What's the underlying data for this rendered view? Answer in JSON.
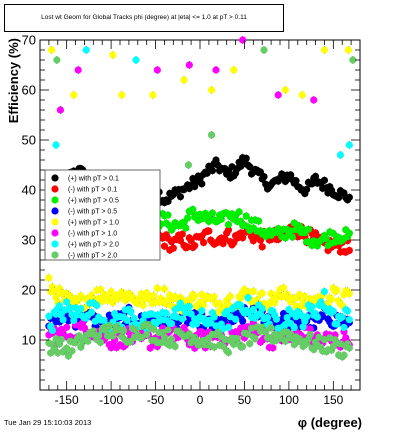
{
  "title": "Lost wt Geom for Global Tracks phi (degree) at |eta| <= 1.0 at pT > 0.11",
  "footer": "Tue Jan 29 15:10:03 2013",
  "chart_data": {
    "type": "scatter",
    "title": "Lost wt Geom for Global Tracks phi (degree) at |eta| <= 1.0 at pT > 0.11",
    "xlabel": "φ (degree)",
    "ylabel": "Efficiency (%)",
    "xlim": [
      -180,
      180
    ],
    "ylim": [
      0,
      70
    ],
    "x_ticks": [
      -150,
      -100,
      -50,
      0,
      50,
      100,
      150
    ],
    "y_ticks": [
      10,
      20,
      30,
      40,
      50,
      60,
      70
    ],
    "grid": false,
    "legend_position": "left-middle",
    "series": [
      {
        "name": "(+) with pT > 0.1",
        "color": "#000000",
        "noise": 1.2,
        "x": [
          -170,
          -160,
          -150,
          -140,
          -130,
          -120,
          -110,
          -100,
          -90,
          -80,
          -70,
          -60,
          -50,
          -40,
          -30,
          -20,
          -10,
          0,
          10,
          20,
          30,
          40,
          50,
          60,
          70,
          80,
          90,
          100,
          110,
          120,
          130,
          140,
          150,
          160,
          170
        ],
        "y": [
          39,
          40,
          42,
          44,
          43,
          41,
          39,
          38,
          40,
          41,
          38,
          39,
          40,
          38,
          39,
          40,
          41,
          42,
          44,
          45,
          43,
          44,
          46,
          44,
          42,
          41,
          42,
          43,
          41,
          40,
          42,
          41,
          40,
          39,
          38.5
        ]
      },
      {
        "name": "(-) with pT > 0.1",
        "color": "#ff0000",
        "noise": 1.5,
        "x": [
          -170,
          -160,
          -150,
          -140,
          -130,
          -120,
          -110,
          -100,
          -90,
          -80,
          -70,
          -60,
          -50,
          -40,
          -30,
          -20,
          -10,
          0,
          10,
          20,
          30,
          40,
          50,
          60,
          70,
          80,
          90,
          100,
          110,
          120,
          130,
          140,
          150,
          160,
          170
        ],
        "y": [
          28,
          29,
          30,
          31,
          30,
          29,
          30,
          31,
          31,
          30,
          30,
          30,
          31,
          30,
          29,
          30,
          29,
          30,
          31,
          30,
          31,
          30,
          32,
          31,
          30,
          31,
          30,
          32,
          32,
          31,
          30,
          29,
          29,
          29,
          28
        ]
      },
      {
        "name": "(+) with pT > 0.5",
        "color": "#00ee00",
        "noise": 1.5,
        "x": [
          -170,
          -160,
          -150,
          -140,
          -130,
          -120,
          -110,
          -100,
          -90,
          -80,
          -70,
          -60,
          -50,
          -40,
          -30,
          -20,
          -10,
          0,
          10,
          20,
          30,
          40,
          50,
          60,
          70,
          80,
          90,
          100,
          110,
          120,
          130,
          140,
          150,
          160,
          170
        ],
        "y": [
          35,
          34,
          34,
          35,
          35,
          35,
          35,
          34,
          33,
          32,
          33,
          34,
          34,
          34,
          33,
          33,
          35,
          35,
          34,
          34,
          34,
          35,
          34,
          33,
          32,
          31,
          31,
          32,
          32,
          31,
          30,
          30,
          31,
          31,
          30
        ]
      },
      {
        "name": "(-) with pT > 0.5",
        "color": "#0000ff",
        "noise": 1.5,
        "x": [
          -170,
          -160,
          -150,
          -140,
          -130,
          -120,
          -110,
          -100,
          -90,
          -80,
          -70,
          -60,
          -50,
          -40,
          -30,
          -20,
          -10,
          0,
          10,
          20,
          30,
          40,
          50,
          60,
          70,
          80,
          90,
          100,
          110,
          120,
          130,
          140,
          150,
          160,
          170
        ],
        "y": [
          13,
          14,
          15,
          14,
          15,
          14,
          13,
          14,
          14,
          15,
          14,
          13,
          14,
          14,
          13,
          15,
          14,
          14,
          13,
          13,
          14,
          14,
          15,
          16,
          15,
          14,
          14,
          14,
          13,
          14,
          13,
          15,
          14,
          14,
          13
        ]
      },
      {
        "name": "(+) with pT > 1.0",
        "color": "#ffff00",
        "noise": 1.6,
        "x": [
          -170,
          -160,
          -150,
          -140,
          -130,
          -120,
          -110,
          -100,
          -90,
          -80,
          -70,
          -60,
          -50,
          -40,
          -30,
          -20,
          -10,
          0,
          10,
          20,
          30,
          40,
          50,
          60,
          70,
          80,
          90,
          100,
          110,
          120,
          130,
          140,
          150,
          160,
          170
        ],
        "y": [
          21,
          19,
          18,
          17,
          18,
          19,
          19,
          19,
          19,
          19,
          18,
          18,
          19,
          19,
          18,
          17,
          18,
          18,
          18,
          17,
          18,
          18,
          19,
          19,
          18,
          18,
          19,
          19,
          18,
          17,
          18,
          18,
          19,
          18,
          19
        ]
      },
      {
        "name": "(-) with pT > 1.0",
        "color": "#ff00ff",
        "noise": 1.8,
        "x": [
          -170,
          -160,
          -150,
          -140,
          -130,
          -120,
          -110,
          -100,
          -90,
          -80,
          -70,
          -60,
          -50,
          -40,
          -30,
          -20,
          -10,
          0,
          10,
          20,
          30,
          40,
          50,
          60,
          70,
          80,
          90,
          100,
          110,
          120,
          130,
          140,
          150,
          160,
          170
        ],
        "y": [
          12,
          11,
          11,
          12,
          12,
          12,
          11,
          10,
          10,
          11,
          10,
          10,
          10,
          11,
          11,
          11,
          10,
          10,
          10,
          11,
          11,
          11,
          12,
          12,
          11,
          10,
          11,
          10,
          11,
          11,
          10,
          10,
          10,
          10,
          11
        ]
      },
      {
        "name": "(+) with pT > 2.0",
        "color": "#00ffff",
        "noise": 2.0,
        "x": [
          -170,
          -160,
          -150,
          -140,
          -130,
          -120,
          -110,
          -100,
          -90,
          -80,
          -70,
          -60,
          -50,
          -40,
          -30,
          -20,
          -10,
          0,
          10,
          20,
          30,
          40,
          50,
          60,
          70,
          80,
          90,
          100,
          110,
          120,
          130,
          140,
          150,
          160,
          170
        ],
        "y": [
          13,
          15,
          16,
          15,
          16,
          16,
          14,
          13,
          14,
          15,
          14,
          13,
          14,
          14,
          15,
          16,
          15,
          14,
          14,
          13,
          14,
          15,
          17,
          16,
          15,
          14,
          14,
          15,
          14,
          15,
          16,
          18,
          15,
          14,
          15
        ]
      },
      {
        "name": "(-) with pT > 2.0",
        "color": "#66cc66",
        "noise": 1.6,
        "x": [
          -170,
          -160,
          -150,
          -140,
          -130,
          -120,
          -110,
          -100,
          -90,
          -80,
          -70,
          -60,
          -50,
          -40,
          -30,
          -20,
          -10,
          0,
          10,
          20,
          30,
          40,
          50,
          60,
          70,
          80,
          90,
          100,
          110,
          120,
          130,
          140,
          150,
          160,
          170
        ],
        "y": [
          9,
          9,
          8,
          9,
          10,
          11,
          11,
          12,
          11,
          11,
          12,
          12,
          11,
          11,
          10,
          11,
          11,
          10,
          10,
          10,
          9,
          9,
          10,
          11,
          11,
          11,
          11,
          11,
          10,
          10,
          9,
          9,
          9,
          8,
          9
        ]
      }
    ],
    "outliers": [
      {
        "x": -167,
        "y": 68,
        "color": "#ffff00"
      },
      {
        "x": -161,
        "y": 66,
        "color": "#66cc66"
      },
      {
        "x": -157,
        "y": 56,
        "color": "#ff00ff"
      },
      {
        "x": -162,
        "y": 49,
        "color": "#00ffff"
      },
      {
        "x": -137,
        "y": 64,
        "color": "#ff00ff"
      },
      {
        "x": -128,
        "y": 68,
        "color": "#00ffff"
      },
      {
        "x": -98,
        "y": 67,
        "color": "#ffff00"
      },
      {
        "x": -72,
        "y": 66,
        "color": "#00ffff"
      },
      {
        "x": -48,
        "y": 64,
        "color": "#ff00ff"
      },
      {
        "x": -18,
        "y": 62,
        "color": "#ffff00"
      },
      {
        "x": -12,
        "y": 65,
        "color": "#ff00ff"
      },
      {
        "x": 18,
        "y": 64,
        "color": "#ff00ff"
      },
      {
        "x": 38,
        "y": 64,
        "color": "#ffff00"
      },
      {
        "x": 48,
        "y": 70,
        "color": "#ff00ff"
      },
      {
        "x": 72,
        "y": 68,
        "color": "#66cc66"
      },
      {
        "x": 96,
        "y": 60,
        "color": "#ffff00"
      },
      {
        "x": 128,
        "y": 58,
        "color": "#ff00ff"
      },
      {
        "x": 140,
        "y": 68,
        "color": "#ffff00"
      },
      {
        "x": 167,
        "y": 68,
        "color": "#ffff00"
      },
      {
        "x": 172,
        "y": 66,
        "color": "#66cc66"
      },
      {
        "x": 168,
        "y": 49,
        "color": "#00ffff"
      },
      {
        "x": -142,
        "y": 59,
        "color": "#ffff00"
      },
      {
        "x": -88,
        "y": 59,
        "color": "#ffff00"
      },
      {
        "x": -53,
        "y": 59,
        "color": "#ffff00"
      },
      {
        "x": 13,
        "y": 60,
        "color": "#ffff00"
      },
      {
        "x": -13,
        "y": 45,
        "color": "#66cc66"
      },
      {
        "x": 13,
        "y": 51,
        "color": "#66cc66"
      },
      {
        "x": 88,
        "y": 59,
        "color": "#ff00ff"
      },
      {
        "x": 115,
        "y": 59,
        "color": "#ffff00"
      },
      {
        "x": 158,
        "y": 47,
        "color": "#00ffff"
      }
    ]
  }
}
